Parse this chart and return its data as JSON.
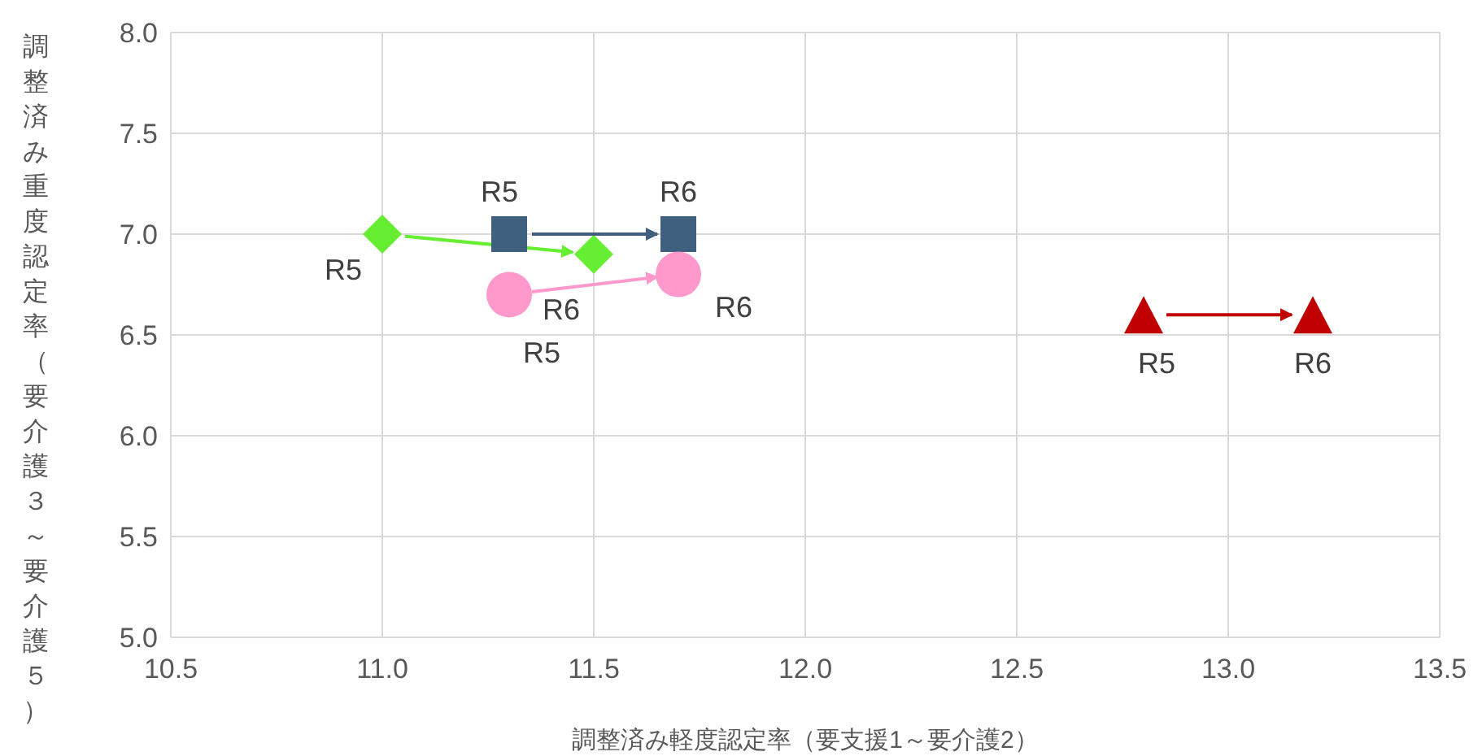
{
  "chart_data": {
    "type": "scatter",
    "xlabel": "調整済み軽度認定率（要支援1～要介護2）",
    "ylabel": "調整済み重度認定率（要介護３～要介護５）",
    "xlim": [
      10.5,
      13.5
    ],
    "xticks": [
      {
        "value": 10.5,
        "label": "10.5"
      },
      {
        "value": 11,
        "label": "11.0"
      },
      {
        "value": 11.5,
        "label": "11.5"
      },
      {
        "value": 12,
        "label": "12.0"
      },
      {
        "value": 12.5,
        "label": "12.5"
      },
      {
        "value": 13,
        "label": "13.0"
      },
      {
        "value": 13.5,
        "label": "13.5"
      }
    ],
    "ylim": [
      5,
      8
    ],
    "yticks": [
      {
        "value": 5,
        "label": "5.0"
      },
      {
        "value": 5.5,
        "label": "5.5"
      },
      {
        "value": 6,
        "label": "6.0"
      },
      {
        "value": 6.5,
        "label": "6.5"
      },
      {
        "value": 7,
        "label": "7.0"
      },
      {
        "value": 7.5,
        "label": "7.5"
      },
      {
        "value": 8,
        "label": "8.0"
      }
    ],
    "grid": true,
    "series": [
      {
        "color": "#66ee33",
        "marker": "diamond",
        "x": [
          11.0,
          11.5
        ],
        "values": [
          7.0,
          6.9
        ]
      },
      {
        "color": "#3f5f7f",
        "marker": "square",
        "x": [
          11.3,
          11.7
        ],
        "values": [
          7.0,
          7.0
        ]
      },
      {
        "color": "#ff99cc",
        "marker": "circle",
        "x": [
          11.3,
          11.7
        ],
        "values": [
          6.7,
          6.8
        ]
      },
      {
        "color": "#c00000",
        "marker": "triangle",
        "x": [
          12.8,
          13.2
        ],
        "values": [
          6.6,
          6.6
        ]
      }
    ],
    "annotations": [
      {
        "text": "R5",
        "x": 11.0,
        "y": 7.0
      },
      {
        "text": "R6",
        "x": 11.5,
        "y": 6.9
      },
      {
        "text": "R5",
        "x": 11.3,
        "y": 7.0
      },
      {
        "text": "R6",
        "x": 11.7,
        "y": 7.0
      },
      {
        "text": "R5",
        "x": 11.3,
        "y": 6.7
      },
      {
        "text": "R6",
        "x": 11.7,
        "y": 6.8
      },
      {
        "text": "R5",
        "x": 12.8,
        "y": 6.6
      },
      {
        "text": "R6",
        "x": 13.2,
        "y": 6.6
      }
    ]
  }
}
